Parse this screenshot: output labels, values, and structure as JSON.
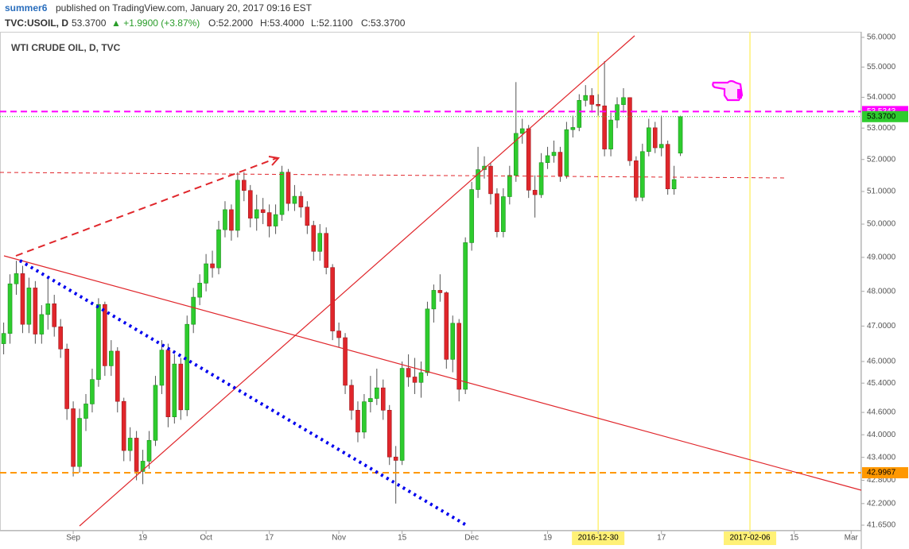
{
  "header": {
    "author": "summer6",
    "published": "published on TradingView.com, January 20, 2017 09:16 EST",
    "symbol": "TVC:USOIL, D",
    "last": "53.3700",
    "change": "▲ +1.9900 (+3.87%)",
    "open": "O:52.2000",
    "high": "H:53.4000",
    "low": "L:52.1100",
    "close": "C:53.3700"
  },
  "chart_data": {
    "type": "candlestick",
    "title": "WTI CRUDE OIL, D, TVC",
    "log_scale": true,
    "grid": false,
    "up_color": "#2ecc2e",
    "down_color": "#e0262b",
    "highlight_color": "#fff176",
    "open": [
      46.5,
      46.79,
      48.22,
      48.52,
      47.05,
      48.1,
      46.77,
      47.33,
      47.64,
      46.98,
      46.35,
      44.7,
      43.16,
      44.44,
      44.83,
      45.5,
      47.62,
      45.88,
      46.29,
      44.9,
      43.58,
      43.91,
      43.03,
      43.3,
      43.85,
      45.34,
      46.32,
      44.48,
      45.93,
      44.67,
      47.05,
      47.83,
      48.24,
      48.81,
      48.69,
      49.83,
      50.44,
      49.81,
      51.35,
      51.03,
      50.18,
      50.44,
      50.35,
      49.94,
      50.29,
      51.6,
      50.63,
      50.85,
      50.52,
      49.96,
      49.18,
      49.72,
      48.7,
      46.86,
      46.67,
      45.34,
      44.66,
      44.07,
      44.89,
      44.98,
      45.27,
      44.66,
      43.41,
      43.32,
      45.81,
      45.57,
      45.42,
      45.69,
      47.49,
      48.03,
      47.96,
      46.06,
      47.08,
      45.23,
      49.44,
      51.06,
      51.68,
      51.79,
      50.93,
      49.77,
      50.84,
      51.5,
      52.83,
      52.98,
      51.04,
      50.9,
      51.9,
      52.12,
      52.23,
      51.49,
      52.95,
      53.02,
      53.9,
      54.06,
      53.77,
      53.72,
      52.33,
      53.26,
      53.76,
      53.99,
      51.96,
      50.82,
      52.25,
      53.01,
      52.37,
      52.48,
      51.08,
      52.2
    ],
    "high": [
      47.1,
      48.5,
      48.9,
      48.75,
      48.4,
      48.3,
      47.6,
      48.4,
      47.9,
      47.2,
      46.5,
      44.9,
      44.7,
      45.1,
      45.8,
      47.8,
      47.7,
      46.6,
      46.4,
      45.0,
      44.2,
      44.1,
      43.6,
      44.1,
      45.6,
      46.6,
      46.5,
      46.2,
      46.1,
      47.3,
      48.1,
      48.5,
      49.1,
      49.2,
      50.1,
      50.7,
      50.6,
      51.6,
      51.6,
      51.2,
      50.9,
      50.8,
      50.6,
      50.6,
      51.8,
      51.7,
      51.2,
      51.0,
      50.7,
      50.1,
      50.0,
      49.9,
      48.8,
      47.1,
      46.8,
      45.5,
      44.9,
      45.1,
      45.6,
      45.8,
      45.5,
      44.8,
      43.7,
      46.0,
      46.2,
      46.1,
      46.0,
      47.7,
      48.2,
      48.5,
      48.0,
      47.3,
      47.2,
      49.6,
      51.3,
      52.4,
      52.1,
      51.9,
      51.1,
      51.1,
      51.8,
      54.5,
      53.3,
      53.1,
      51.5,
      52.2,
      52.4,
      52.6,
      52.4,
      53.2,
      53.4,
      54.1,
      54.4,
      54.3,
      54.1,
      55.2,
      53.5,
      54.0,
      54.3,
      54.0,
      52.1,
      52.5,
      53.3,
      53.2,
      53.4,
      52.6,
      51.8,
      53.4
    ],
    "low": [
      46.2,
      46.5,
      47.9,
      46.8,
      46.8,
      46.5,
      46.5,
      46.9,
      46.7,
      46.1,
      44.4,
      42.9,
      43.0,
      44.1,
      44.6,
      45.3,
      45.6,
      45.6,
      44.6,
      43.3,
      43.3,
      42.8,
      42.7,
      43.1,
      43.7,
      45.1,
      44.2,
      44.3,
      44.4,
      44.5,
      46.8,
      47.6,
      48.0,
      48.4,
      48.5,
      49.6,
      49.5,
      49.6,
      50.7,
      49.9,
      49.8,
      50.0,
      49.6,
      49.7,
      50.1,
      50.4,
      50.4,
      50.2,
      49.7,
      48.9,
      48.9,
      48.5,
      46.6,
      46.4,
      45.1,
      44.4,
      43.8,
      43.9,
      44.6,
      44.8,
      44.4,
      43.2,
      42.2,
      43.2,
      45.3,
      45.1,
      45.0,
      45.6,
      47.1,
      47.7,
      45.8,
      45.7,
      44.9,
      45.1,
      49.2,
      50.8,
      51.4,
      50.6,
      49.6,
      49.6,
      50.6,
      51.3,
      52.5,
      50.8,
      50.2,
      50.8,
      51.7,
      51.9,
      51.3,
      51.4,
      52.7,
      52.9,
      53.7,
      53.5,
      53.4,
      52.1,
      52.1,
      53.0,
      53.5,
      51.8,
      50.7,
      50.7,
      52.1,
      52.2,
      52.1,
      50.9,
      50.9,
      52.11
    ],
    "close": [
      46.79,
      48.22,
      48.52,
      47.05,
      48.1,
      46.77,
      47.33,
      47.64,
      46.98,
      46.35,
      44.7,
      43.16,
      44.44,
      44.83,
      45.5,
      47.62,
      45.88,
      46.29,
      44.9,
      43.58,
      43.91,
      43.03,
      43.3,
      43.85,
      45.34,
      46.32,
      44.48,
      45.93,
      44.67,
      47.05,
      47.83,
      48.24,
      48.81,
      48.69,
      49.83,
      50.44,
      49.81,
      51.35,
      51.03,
      50.18,
      50.44,
      50.35,
      49.94,
      50.29,
      51.6,
      50.63,
      50.85,
      50.52,
      49.96,
      49.18,
      49.72,
      48.7,
      46.86,
      46.67,
      45.34,
      44.66,
      44.07,
      44.89,
      44.98,
      45.27,
      44.66,
      43.41,
      43.32,
      45.81,
      45.57,
      45.42,
      45.69,
      47.49,
      48.03,
      47.96,
      46.06,
      47.08,
      45.23,
      49.44,
      51.06,
      51.68,
      51.79,
      50.93,
      49.77,
      50.84,
      51.5,
      52.83,
      52.98,
      51.04,
      50.9,
      51.9,
      52.12,
      52.23,
      51.49,
      52.95,
      53.02,
      53.9,
      54.06,
      53.77,
      53.72,
      52.33,
      53.26,
      53.76,
      53.99,
      51.96,
      50.82,
      52.25,
      53.01,
      52.37,
      52.48,
      51.08,
      51.37,
      53.37
    ],
    "xlim": [
      -0.58,
      135.6
    ],
    "xticks": [
      {
        "value": 11,
        "label": "Sep"
      },
      {
        "value": 22,
        "label": "19"
      },
      {
        "value": 32,
        "label": "Oct"
      },
      {
        "value": 42,
        "label": "17"
      },
      {
        "value": 53,
        "label": "Nov"
      },
      {
        "value": 63,
        "label": "15"
      },
      {
        "value": 74,
        "label": "Dec"
      },
      {
        "value": 86,
        "label": "19"
      },
      {
        "value": 94,
        "label": "2016-12-30",
        "highlight": true
      },
      {
        "value": 104,
        "label": "17"
      },
      {
        "value": 118,
        "label": "2017-02-06",
        "highlight": true
      },
      {
        "value": 125,
        "label": "15"
      },
      {
        "value": 134,
        "label": "Mar"
      }
    ],
    "ylim": [
      41.51,
      56.19
    ],
    "yticks": [
      {
        "value": 56,
        "label": "56.0000"
      },
      {
        "value": 55,
        "label": "55.0000"
      },
      {
        "value": 54,
        "label": "54.0000"
      },
      {
        "value": 53,
        "label": "53.0000"
      },
      {
        "value": 52,
        "label": "52.0000"
      },
      {
        "value": 51,
        "label": "51.0000"
      },
      {
        "value": 50,
        "label": "50.0000"
      },
      {
        "value": 49,
        "label": "49.0000"
      },
      {
        "value": 48,
        "label": "48.0000"
      },
      {
        "value": 47,
        "label": "47.0000"
      },
      {
        "value": 46,
        "label": "46.0000"
      },
      {
        "value": 45.4,
        "label": "45.4000"
      },
      {
        "value": 44.6,
        "label": "44.6000"
      },
      {
        "value": 44,
        "label": "44.0000"
      },
      {
        "value": 43.4,
        "label": "43.4000"
      },
      {
        "value": 42.8,
        "label": "42.8000"
      },
      {
        "value": 42.2,
        "label": "42.2000"
      },
      {
        "value": 41.65,
        "label": "41.6500"
      }
    ],
    "price_lines": [
      {
        "value": 53.5343,
        "color": "#ff00ff",
        "dash": "8 5",
        "text_color": "#ffffff"
      },
      {
        "value": 53.37,
        "label": "53.3700",
        "color": "#2ecc2e",
        "dash": "1 2",
        "text_color": "#000000"
      },
      {
        "value": 42.9967,
        "color": "#ff9800",
        "dash": "8 5",
        "text_color": "#000000"
      }
    ]
  }
}
